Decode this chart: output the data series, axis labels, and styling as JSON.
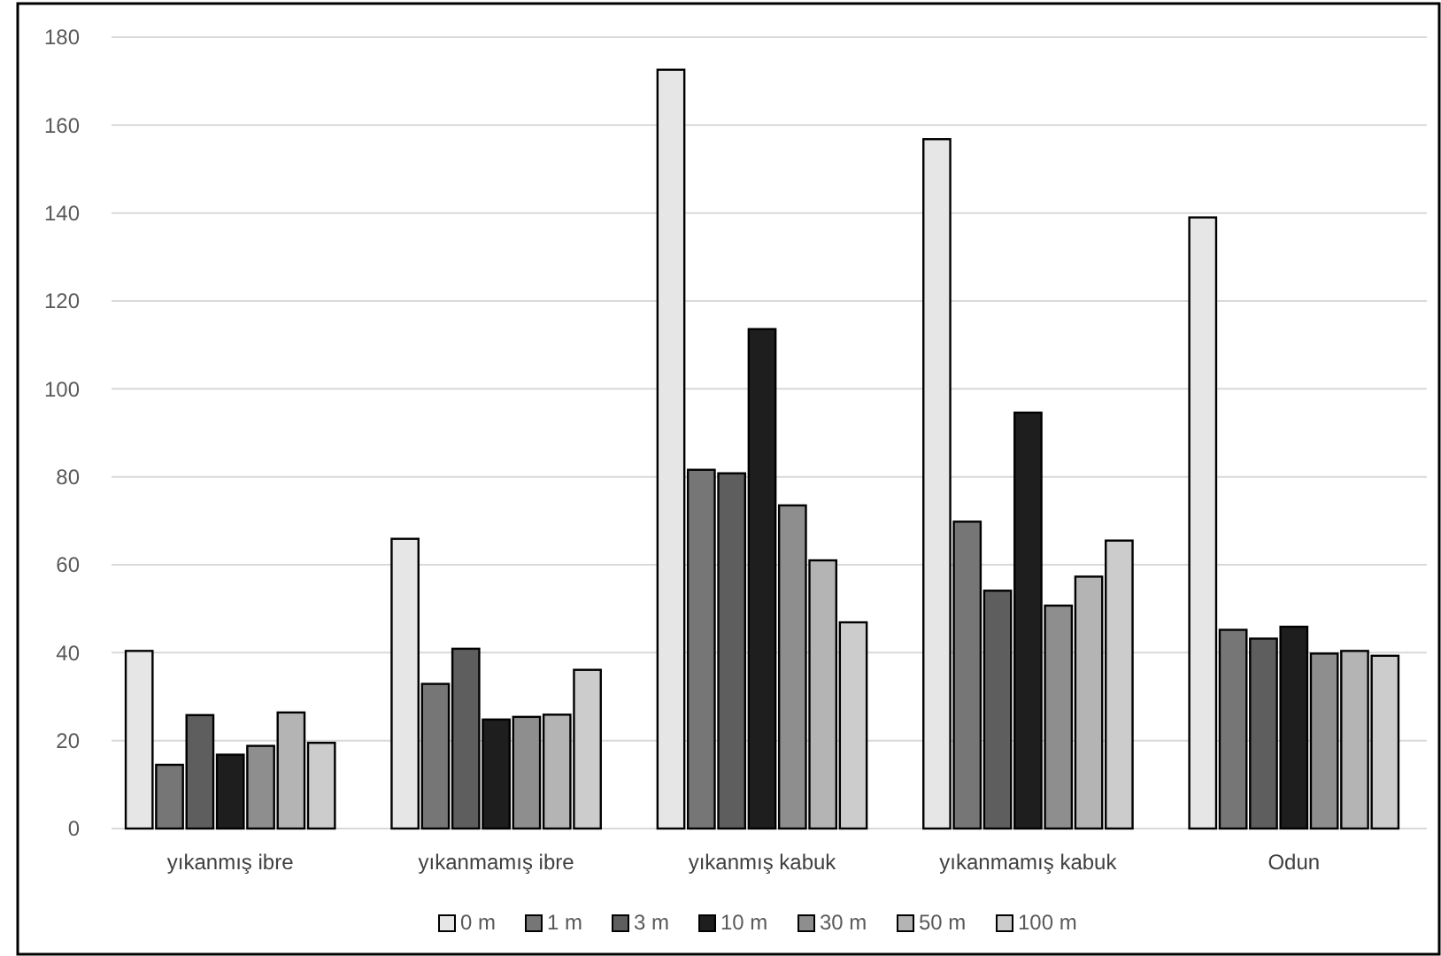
{
  "chart_data": {
    "type": "bar",
    "categories": [
      "yıkanmış ibre",
      "yıkanmamış ibre",
      "yıkanmış kabuk",
      "yıkanmamış kabuk",
      "Odun"
    ],
    "series": [
      {
        "name": "0 m",
        "color": "#e6e6e6",
        "values": [
          40.4,
          65.9,
          172.6,
          156.8,
          139.0
        ]
      },
      {
        "name": "1 m",
        "color": "#767676",
        "values": [
          14.5,
          32.9,
          81.6,
          69.8,
          45.2
        ]
      },
      {
        "name": "3 m",
        "color": "#5e5e5e",
        "values": [
          25.8,
          40.9,
          80.8,
          54.1,
          43.2
        ]
      },
      {
        "name": "10 m",
        "color": "#1e1e1e",
        "values": [
          16.8,
          24.8,
          113.6,
          94.6,
          45.9
        ]
      },
      {
        "name": "30 m",
        "color": "#8e8e8e",
        "values": [
          18.8,
          25.4,
          73.5,
          50.7,
          39.8
        ]
      },
      {
        "name": "50 m",
        "color": "#b4b4b4",
        "values": [
          26.4,
          25.9,
          61.0,
          57.3,
          40.4
        ]
      },
      {
        "name": "100 m",
        "color": "#cccccc",
        "values": [
          19.5,
          36.1,
          46.9,
          65.5,
          39.3
        ]
      }
    ],
    "ylim": [
      0,
      180
    ],
    "yticks": [
      0,
      20,
      40,
      60,
      80,
      100,
      120,
      140,
      160,
      180
    ],
    "grid": "y",
    "legend": "bottom"
  }
}
